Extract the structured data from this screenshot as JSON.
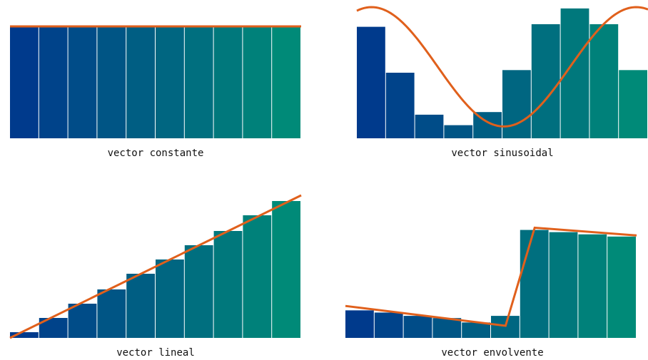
{
  "colors": {
    "bar_start": "#003A8C",
    "bar_end": "#008A78",
    "curve": "#E0601C",
    "bar_separator": "#ffffff",
    "background": "#ffffff"
  },
  "chart_data": [
    {
      "type": "bar",
      "title": "vector constante",
      "values": [
        1,
        1,
        1,
        1,
        1,
        1,
        1,
        1,
        1,
        1
      ],
      "ylim": [
        0,
        1
      ],
      "overlay_line": {
        "x": [
          0,
          10
        ],
        "y": [
          1,
          1
        ]
      }
    },
    {
      "type": "bar",
      "title": "vector sinusoidal",
      "values": [
        0.85,
        0.5,
        0.18,
        0.1,
        0.2,
        0.52,
        0.87,
        0.99,
        0.87,
        0.52
      ],
      "ylim": [
        0,
        1
      ],
      "overlay_line": {
        "function": "sine",
        "min": 0.09,
        "max": 1.0,
        "periods": 1.1
      }
    },
    {
      "type": "bar",
      "title": "vector lineal",
      "values": [
        0.04,
        0.14,
        0.24,
        0.34,
        0.45,
        0.55,
        0.65,
        0.75,
        0.86,
        0.96
      ],
      "ylim": [
        0,
        1
      ],
      "overlay_line": {
        "x": [
          0,
          10
        ],
        "y": [
          0.0,
          1.0
        ]
      }
    },
    {
      "type": "bar",
      "title": "vector envolvente",
      "values": [
        0.25,
        0.23,
        0.2,
        0.18,
        0.14,
        0.2,
        0.98,
        0.96,
        0.94,
        0.92
      ],
      "ylim": [
        0,
        1.1
      ],
      "overlay_line": {
        "x": [
          0,
          5.5,
          6.5,
          10
        ],
        "y": [
          0.29,
          0.11,
          1.0,
          0.93
        ]
      }
    }
  ]
}
